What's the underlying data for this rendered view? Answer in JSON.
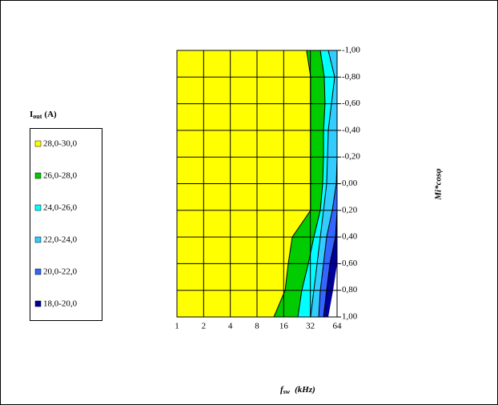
{
  "chart_data": {
    "type": "contour",
    "x_label": {
      "main": "f",
      "sub": "sw",
      "unit": "(kHz)"
    },
    "y_label": "Mi*cosφ",
    "legend_title": {
      "main": "I",
      "sub": "out",
      "unit": "(A)"
    },
    "xscale": "log2",
    "xlim": [
      1,
      64
    ],
    "xticks": [
      1,
      2,
      4,
      8,
      16,
      32,
      64
    ],
    "ylim": [
      -1,
      1
    ],
    "y_inverted": true,
    "y_axis_side": "right",
    "yticks": [
      {
        "value": -1,
        "label": "-1,00"
      },
      {
        "value": -0.8,
        "label": "-0,80"
      },
      {
        "value": -0.6,
        "label": "-0,60"
      },
      {
        "value": -0.4,
        "label": "-0,40"
      },
      {
        "value": -0.2,
        "label": "-0,20"
      },
      {
        "value": 0,
        "label": "0,00"
      },
      {
        "value": 0.2,
        "label": "0,20"
      },
      {
        "value": 0.4,
        "label": "0,40"
      },
      {
        "value": 0.6,
        "label": "0,60"
      },
      {
        "value": 0.8,
        "label": "0,80"
      },
      {
        "value": 1,
        "label": "1,00"
      }
    ],
    "grid": true,
    "y": [
      -1,
      -0.8,
      -0.6,
      -0.4,
      -0.2,
      0,
      0.2,
      0.4,
      0.6,
      0.8,
      1
    ],
    "series": [
      {
        "name": "28,0-30,0",
        "color": "#ffff00",
        "values": [
          29.0,
          32.2,
          32.2,
          32.2,
          32.2,
          32.2,
          32.2,
          20.0,
          18.0,
          16.6,
          12.4
        ]
      },
      {
        "name": "26,0-28,0",
        "color": "#00cc00",
        "values": [
          41.4,
          45.9,
          46.8,
          45.0,
          45.0,
          44.0,
          41.4,
          35.0,
          30.3,
          25.6,
          23.1
        ]
      },
      {
        "name": "24,0-26,0",
        "color": "#00ffff",
        "values": [
          50.9,
          60.1,
          55.3,
          50.9,
          49.9,
          48.8,
          45.0,
          41.4,
          38.1,
          35.0,
          32.2
        ]
      },
      {
        "name": "22,0-24,0",
        "color": "#33ccff",
        "values": [
          64,
          64,
          64,
          64,
          64,
          62.7,
          56.5,
          48.8,
          45.0,
          41.4,
          39.7
        ]
      },
      {
        "name": "20,0-22,0",
        "color": "#3366ff",
        "values": [
          64,
          64,
          64,
          64,
          64,
          64,
          64,
          61.4,
          53.1,
          48.8,
          45.0
        ]
      },
      {
        "name": "18,0-20,0",
        "color": "#000099",
        "values": [
          64,
          64,
          64,
          64,
          64,
          64,
          64,
          64,
          64,
          57.7,
          50.9
        ]
      }
    ]
  }
}
